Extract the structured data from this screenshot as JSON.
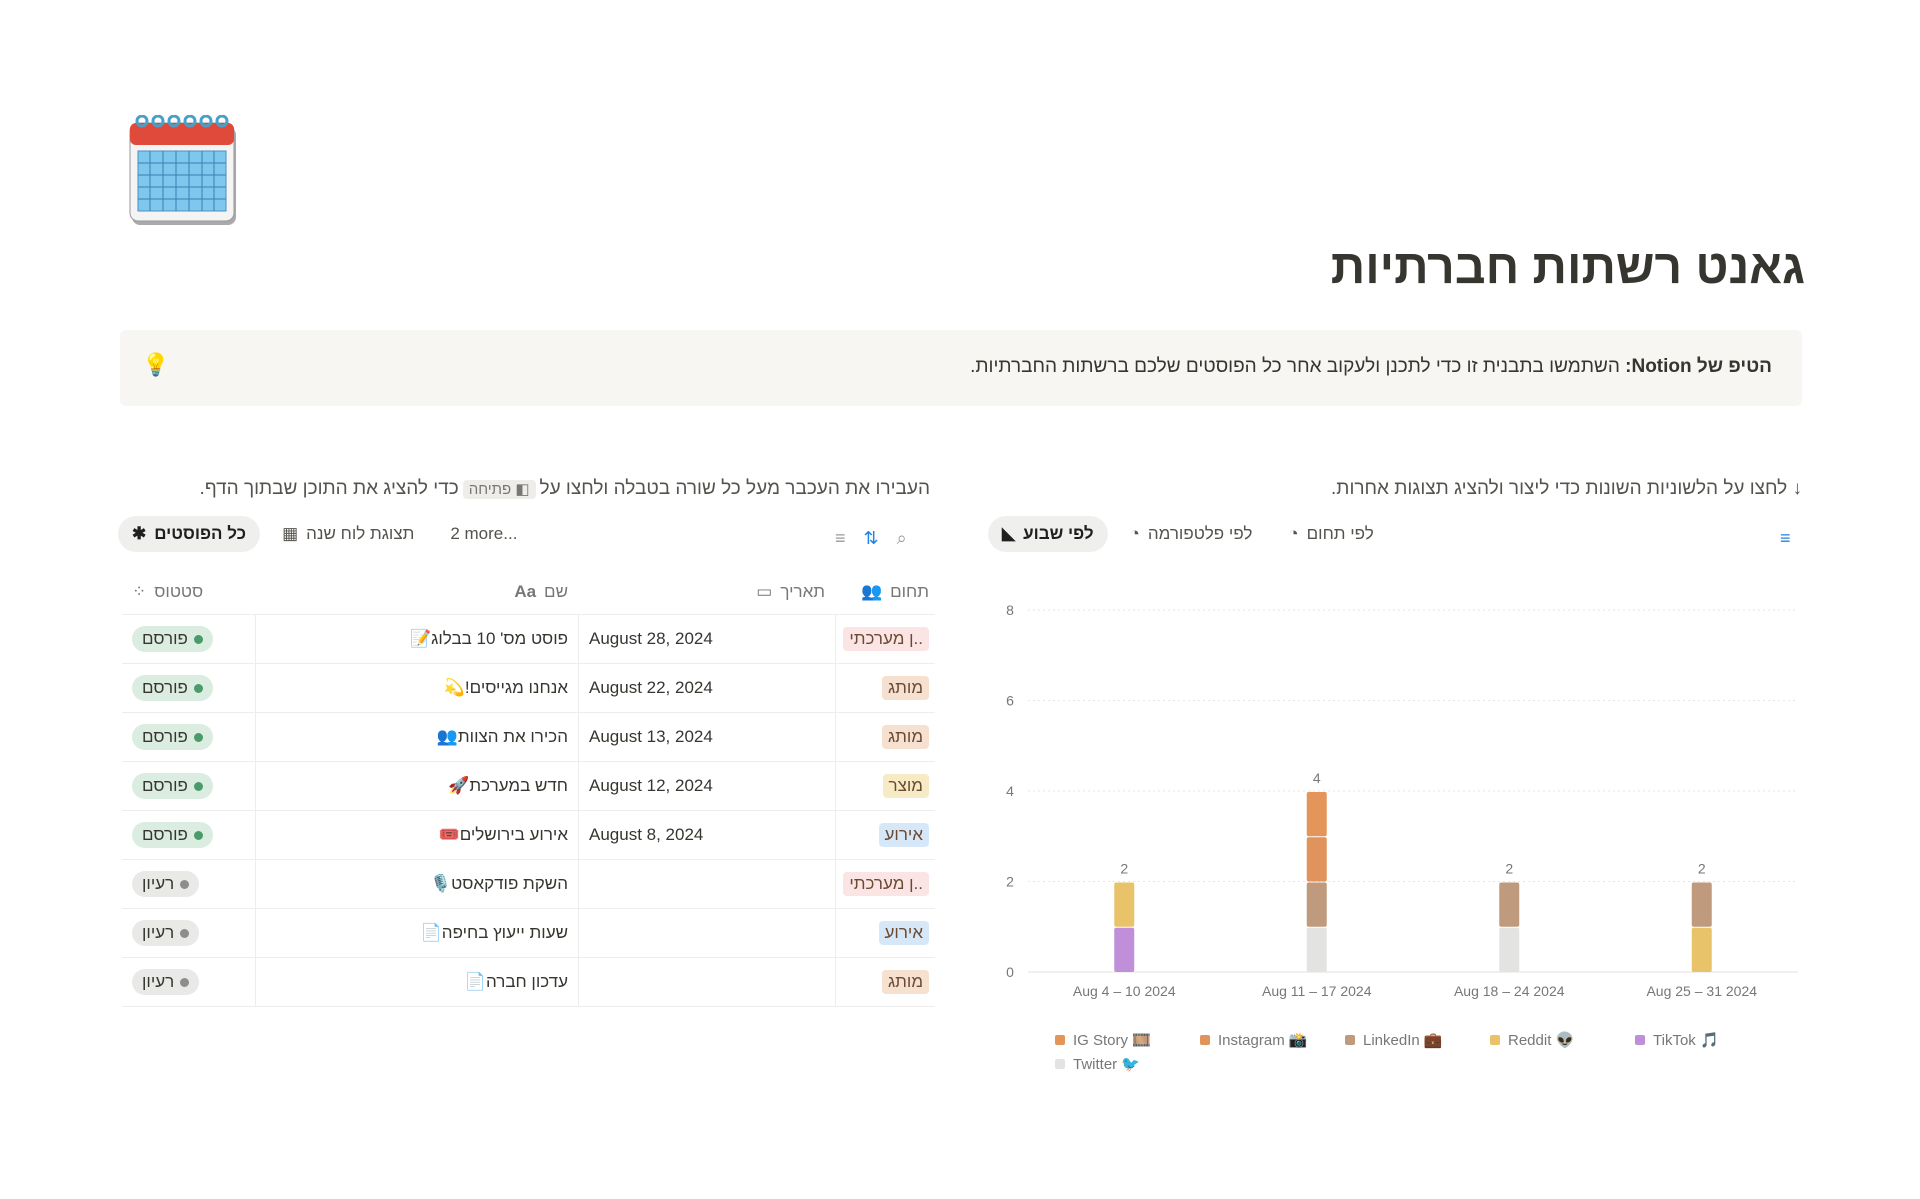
{
  "page": {
    "icon": "calendar-icon",
    "title": "גאנט רשתות חברתיות"
  },
  "callout": {
    "icon": "💡",
    "bold": "הטיפ של Notion:",
    "text": " השתמשו בתבנית זו כדי לתכנן ולעקוב אחר כל הפוסטים שלכם ברשתות החברתיות."
  },
  "left": {
    "hint_before": "העבירו את העכבר מעל כל שורה בטבלה ולחצו על",
    "hint_chip": "◧ פתיחה",
    "hint_after": "כדי להציג את התוכן שבתוך הדף.",
    "tabs": [
      {
        "label": "כל הפוסטים",
        "icon": "✱"
      },
      {
        "label": "תצוגת לוח שנה",
        "icon": "▦"
      },
      {
        "label": "2 more..."
      }
    ],
    "columns": {
      "status": "סטטוס",
      "name": "שם",
      "date": "תאריך",
      "area": "תחום"
    },
    "rows": [
      {
        "status": "פורסם",
        "emoji": "📝",
        "name": "פוסט מס' 10 בבלוג",
        "date": "August 28, 2024",
        "area": "..ן מערכתי",
        "area_color": "#fbe4e4"
      },
      {
        "status": "פורסם",
        "emoji": "💫",
        "name": "אנחנו מגייסים!",
        "date": "August 22, 2024",
        "area": "מותג",
        "area_color": "#f6e0cf"
      },
      {
        "status": "פורסם",
        "emoji": "👥",
        "name": "הכירו את הצוות",
        "date": "August 13, 2024",
        "area": "מותג",
        "area_color": "#f6e0cf"
      },
      {
        "status": "פורסם",
        "emoji": "🚀",
        "name": "חדש במערכת",
        "date": "August 12, 2024",
        "area": "מוצר",
        "area_color": "#f6ebc4"
      },
      {
        "status": "פורסם",
        "emoji": "🎟️",
        "name": "אירוע בירושלים",
        "date": "August 8, 2024",
        "area": "אירוע",
        "area_color": "#d6e8f8"
      },
      {
        "status": "רעיון",
        "emoji": "🎙️",
        "name": "השקת פודקאסט",
        "date": "",
        "area": "..ן מערכתי",
        "area_color": "#fbe4e4"
      },
      {
        "status": "רעיון",
        "emoji": "📄",
        "name": "שעות ייעוץ בחיפה",
        "date": "",
        "area": "אירוע",
        "area_color": "#d6e8f8"
      },
      {
        "status": "רעיון",
        "emoji": "📄",
        "name": "עדכון חברה",
        "date": "",
        "area": "מותג",
        "area_color": "#f6e0cf"
      }
    ],
    "status_colors": {
      "פורסם": {
        "bg": "#dbede1",
        "dot": "#4b9a6a"
      },
      "רעיון": {
        "bg": "#e9e9e7",
        "dot": "#8f8d89"
      }
    }
  },
  "right": {
    "hint": "↓ לחצו על הלשוניות השונות כדי ליצור ולהציג תצוגות אחרות.",
    "tabs": [
      {
        "label": "לפי שבוע",
        "icon": "area-chart-icon"
      },
      {
        "label": "לפי פלטפורמה",
        "icon": "pie-chart-icon"
      },
      {
        "label": "לפי תחום",
        "icon": "pie-chart-icon"
      }
    ]
  },
  "chart_data": {
    "type": "bar",
    "stacked": true,
    "categories": [
      "Aug 4 – 10 2024",
      "Aug 11 – 17 2024",
      "Aug 18 – 24 2024",
      "Aug 25 – 31 2024"
    ],
    "ylim": [
      0,
      8
    ],
    "yticks": [
      0,
      2,
      4,
      6,
      8
    ],
    "grid": true,
    "legend": "bottom",
    "totals": [
      2,
      4,
      2,
      2
    ],
    "series": [
      {
        "name": "IG Story 🎞️",
        "color": "#e3955a",
        "values": [
          0,
          1,
          0,
          0
        ]
      },
      {
        "name": "Instagram 📸",
        "color": "#e0935a",
        "values": [
          0,
          1,
          0,
          0
        ]
      },
      {
        "name": "LinkedIn 💼",
        "color": "#bf9a7d",
        "values": [
          0,
          1,
          1,
          1
        ]
      },
      {
        "name": "Reddit 👽",
        "color": "#e8c36a",
        "values": [
          1,
          0,
          0,
          1
        ]
      },
      {
        "name": "TikTok 🎵",
        "color": "#bf8fd9",
        "values": [
          1,
          0,
          0,
          0
        ]
      },
      {
        "name": "Twitter 🐦",
        "color": "#e3e3e1",
        "values": [
          0,
          1,
          1,
          0
        ]
      }
    ]
  }
}
